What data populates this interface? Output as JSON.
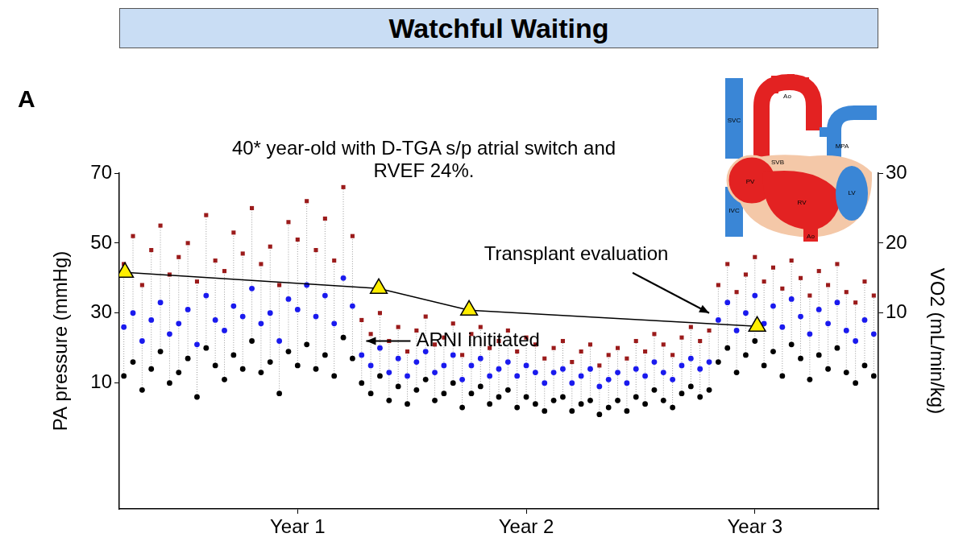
{
  "chart_data": {
    "type": "scatter",
    "header": "Watchful Waiting",
    "panel_label": "A",
    "title": [
      "40* year-old with D-TGA s/p atrial switch and",
      "RVEF 24%."
    ],
    "y_label": "PA pressure (mmHg)",
    "y2_label": "VO2 (mL/min/kg)",
    "x": [
      0.24,
      0.28,
      0.32,
      0.36,
      0.4,
      0.44,
      0.48,
      0.52,
      0.56,
      0.6,
      0.64,
      0.68,
      0.72,
      0.76,
      0.8,
      0.84,
      0.88,
      0.92,
      0.96,
      1.0,
      1.04,
      1.08,
      1.12,
      1.16,
      1.2,
      1.24,
      1.28,
      1.32,
      1.36,
      1.4,
      1.44,
      1.48,
      1.52,
      1.56,
      1.6,
      1.64,
      1.68,
      1.72,
      1.76,
      1.8,
      1.84,
      1.88,
      1.92,
      1.96,
      2.0,
      2.04,
      2.08,
      2.12,
      2.16,
      2.2,
      2.24,
      2.28,
      2.32,
      2.36,
      2.4,
      2.44,
      2.48,
      2.52,
      2.56,
      2.6,
      2.64,
      2.68,
      2.72,
      2.76,
      2.8,
      2.84,
      2.88,
      2.92,
      2.96,
      3.0,
      3.04,
      3.08,
      3.12,
      3.16,
      3.2,
      3.24,
      3.28,
      3.32,
      3.36,
      3.4,
      3.44,
      3.48,
      3.52
    ],
    "series": [
      {
        "color": "#9b1b1b",
        "marker": "square",
        "values": [
          44,
          52,
          38,
          48,
          55,
          41,
          46,
          50,
          39,
          58,
          45,
          42,
          53,
          47,
          60,
          44,
          49,
          38,
          56,
          51,
          62,
          48,
          57,
          45,
          66,
          52,
          28,
          24,
          30,
          22,
          26,
          19,
          25,
          29,
          21,
          23,
          27,
          18,
          24,
          26,
          20,
          22,
          25,
          19,
          23,
          21,
          17,
          20,
          22,
          16,
          19,
          21,
          15,
          18,
          20,
          17,
          22,
          19,
          24,
          21,
          18,
          23,
          26,
          22,
          25,
          38,
          44,
          36,
          41,
          46,
          39,
          43,
          37,
          45,
          40,
          35,
          42,
          38,
          44,
          36,
          33,
          39,
          35
        ]
      },
      {
        "color": "#1a1aee",
        "marker": "circle",
        "values": [
          26,
          30,
          22,
          28,
          33,
          24,
          27,
          31,
          21,
          35,
          28,
          25,
          32,
          29,
          37,
          27,
          30,
          22,
          34,
          31,
          38,
          29,
          35,
          27,
          40,
          32,
          18,
          15,
          20,
          13,
          17,
          12,
          16,
          19,
          13,
          15,
          18,
          11,
          15,
          17,
          12,
          14,
          16,
          12,
          15,
          13,
          10,
          13,
          14,
          10,
          12,
          14,
          9,
          11,
          13,
          10,
          14,
          12,
          16,
          13,
          11,
          15,
          17,
          14,
          16,
          28,
          33,
          25,
          30,
          35,
          27,
          32,
          26,
          34,
          29,
          24,
          31,
          27,
          33,
          25,
          22,
          28,
          24
        ]
      },
      {
        "color": "#000000",
        "marker": "circle",
        "values": [
          12,
          16,
          8,
          14,
          19,
          10,
          13,
          17,
          6,
          20,
          15,
          11,
          18,
          14,
          22,
          13,
          16,
          7,
          19,
          15,
          21,
          14,
          18,
          12,
          23,
          17,
          10,
          7,
          12,
          5,
          9,
          4,
          8,
          11,
          5,
          7,
          10,
          3,
          7,
          9,
          4,
          6,
          8,
          3,
          6,
          4,
          2,
          5,
          6,
          2,
          4,
          5,
          1,
          3,
          5,
          2,
          6,
          4,
          8,
          5,
          3,
          7,
          9,
          6,
          8,
          16,
          20,
          13,
          18,
          22,
          15,
          19,
          12,
          21,
          17,
          11,
          18,
          14,
          20,
          13,
          10,
          15,
          12
        ]
      },
      {
        "axis": "y2",
        "type": "line",
        "color": "#ffee00",
        "marker": "triangle",
        "x": [
          0.245,
          1.355,
          1.75,
          3.01
        ],
        "values": [
          15.8,
          13.5,
          10.4,
          8.1
        ]
      }
    ],
    "xlim": [
      0.22,
      3.54
    ],
    "xticks": [
      {
        "value": 1,
        "label": "Year 1"
      },
      {
        "value": 2,
        "label": "Year 2"
      },
      {
        "value": 3,
        "label": "Year 3"
      }
    ],
    "ylim": [
      -26,
      70
    ],
    "yticks": [
      10,
      30,
      50,
      70
    ],
    "y2lim": [
      -18,
      30
    ],
    "y2ticks": [
      10,
      20,
      30
    ],
    "grid": false,
    "annotations": [
      {
        "text": "ARNI inititated",
        "x": 1.3,
        "y": 22
      },
      {
        "text": "Transplant evaluation",
        "x": 2.8,
        "y": 30
      }
    ],
    "diagram_labels": [
      "SVC",
      "Ao",
      "SVB",
      "PV",
      "MPA",
      "RV",
      "LV",
      "IVC",
      "Ao"
    ]
  }
}
